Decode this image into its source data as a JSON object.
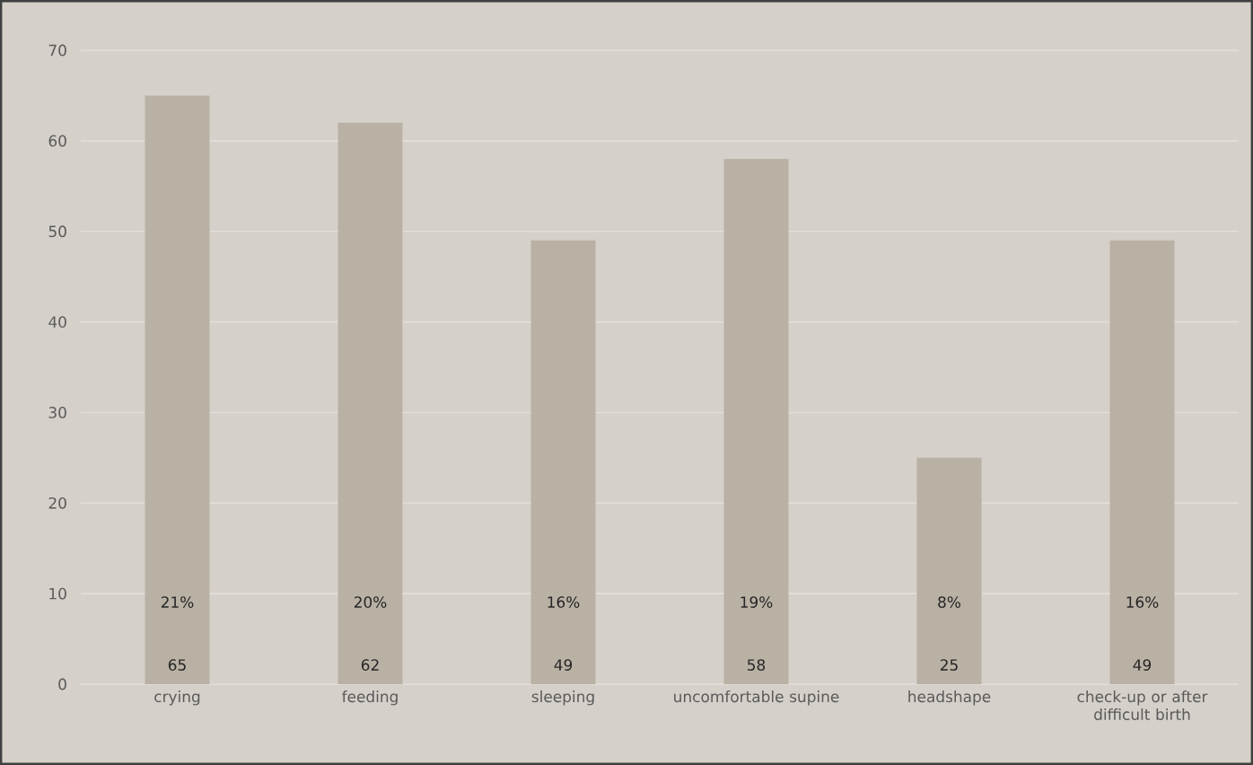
{
  "chart_data": {
    "type": "bar",
    "categories": [
      "crying",
      "feeding",
      "sleeping",
      "uncomfortable supine",
      "headshape",
      "check-up or after difficult birth"
    ],
    "values": [
      65,
      62,
      49,
      58,
      25,
      49
    ],
    "annotations": [
      "21%",
      "20%",
      "16%",
      "19%",
      "8%",
      "16%"
    ],
    "data_labels": true,
    "color": "#b9b1a4",
    "ylim": [
      0,
      70
    ],
    "yticks": [
      0,
      10,
      20,
      30,
      40,
      50,
      60,
      70
    ],
    "grid": "y"
  }
}
